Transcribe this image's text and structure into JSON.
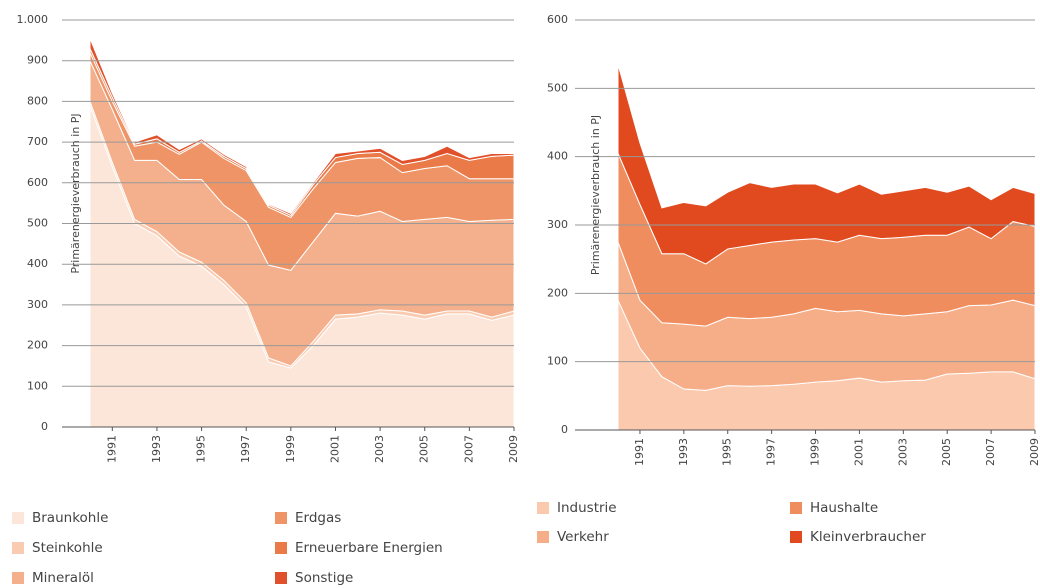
{
  "chart_data": [
    {
      "type": "stacked_area",
      "ylabel": "Primärenergieverbrauch in PJ",
      "x": [
        1990,
        1991,
        1992,
        1993,
        1994,
        1995,
        1996,
        1997,
        1998,
        1999,
        2000,
        2001,
        2002,
        2003,
        2004,
        2005,
        2006,
        2007,
        2008,
        2009
      ],
      "xlim": [
        1990,
        2009
      ],
      "xticks": [
        1991,
        1993,
        1995,
        1997,
        1999,
        2001,
        2003,
        2005,
        2007,
        2009
      ],
      "ylim": [
        0,
        1000
      ],
      "yticks": [
        0,
        100,
        200,
        300,
        400,
        500,
        600,
        700,
        800,
        900,
        {
          "value": 1000,
          "label": "1.000"
        }
      ],
      "grid": true,
      "series": [
        {
          "name": "Braunkohle",
          "color": "#fce6d9",
          "values": [
            790,
            640,
            500,
            470,
            420,
            395,
            350,
            295,
            160,
            145,
            200,
            265,
            270,
            280,
            275,
            265,
            278,
            278,
            262,
            275
          ]
        },
        {
          "name": "Steinkohle",
          "color": "#f9cbb0",
          "values": [
            10,
            10,
            10,
            10,
            10,
            10,
            10,
            10,
            10,
            5,
            10,
            10,
            8,
            8,
            10,
            10,
            7,
            7,
            8,
            10
          ]
        },
        {
          "name": "Mineralöl",
          "color": "#f4b08c",
          "values": [
            100,
            130,
            145,
            175,
            178,
            203,
            185,
            200,
            228,
            235,
            245,
            250,
            240,
            242,
            220,
            235,
            230,
            220,
            238,
            225
          ]
        },
        {
          "name": "Erdgas",
          "color": "#ef9466",
          "values": [
            20,
            20,
            35,
            45,
            62,
            92,
            115,
            125,
            142,
            130,
            130,
            125,
            142,
            132,
            120,
            125,
            127,
            105,
            102,
            100
          ]
        },
        {
          "name": "Erneuerbare Energien",
          "color": "#ea7a48",
          "values": [
            10,
            10,
            5,
            8,
            5,
            3,
            5,
            5,
            5,
            5,
            10,
            12,
            12,
            13,
            20,
            20,
            30,
            45,
            55,
            58
          ]
        },
        {
          "name": "Sonstige",
          "color": "#e0502a",
          "values": [
            25,
            10,
            5,
            10,
            7,
            5,
            5,
            5,
            3,
            5,
            5,
            10,
            6,
            10,
            10,
            10,
            18,
            7,
            7,
            4
          ]
        }
      ]
    },
    {
      "type": "stacked_area",
      "ylabel": "Primärenergieverbrauch in PJ",
      "x": [
        1990,
        1991,
        1992,
        1993,
        1994,
        1995,
        1996,
        1997,
        1998,
        1999,
        2000,
        2001,
        2002,
        2003,
        2004,
        2005,
        2006,
        2007,
        2008,
        2009
      ],
      "xlim": [
        1990,
        2009
      ],
      "xticks": [
        1991,
        1993,
        1995,
        1997,
        1999,
        2001,
        2003,
        2005,
        2007,
        2009
      ],
      "ylim": [
        0,
        600
      ],
      "yticks": [
        0,
        100,
        200,
        300,
        400,
        500,
        600
      ],
      "grid": true,
      "series": [
        {
          "name": "Industrie",
          "color": "#fbc9ad",
          "values": [
            190,
            120,
            78,
            60,
            58,
            65,
            64,
            65,
            67,
            70,
            72,
            76,
            70,
            72,
            73,
            82,
            83,
            85,
            85,
            75
          ]
        },
        {
          "name": "Verkehr",
          "color": "#f6ae88",
          "values": [
            85,
            70,
            79,
            95,
            94,
            100,
            99,
            100,
            103,
            108,
            101,
            99,
            100,
            95,
            97,
            91,
            99,
            98,
            105,
            107
          ]
        },
        {
          "name": "Haushalte",
          "color": "#f08d5f",
          "values": [
            130,
            140,
            101,
            103,
            91,
            100,
            107,
            110,
            108,
            102,
            102,
            110,
            110,
            115,
            115,
            112,
            115,
            97,
            115,
            116
          ]
        },
        {
          "name": "Kleinverbraucher",
          "color": "#e04a1e",
          "values": [
            130,
            90,
            67,
            75,
            85,
            83,
            92,
            80,
            82,
            80,
            72,
            75,
            65,
            68,
            70,
            63,
            60,
            57,
            50,
            48
          ]
        }
      ]
    }
  ]
}
